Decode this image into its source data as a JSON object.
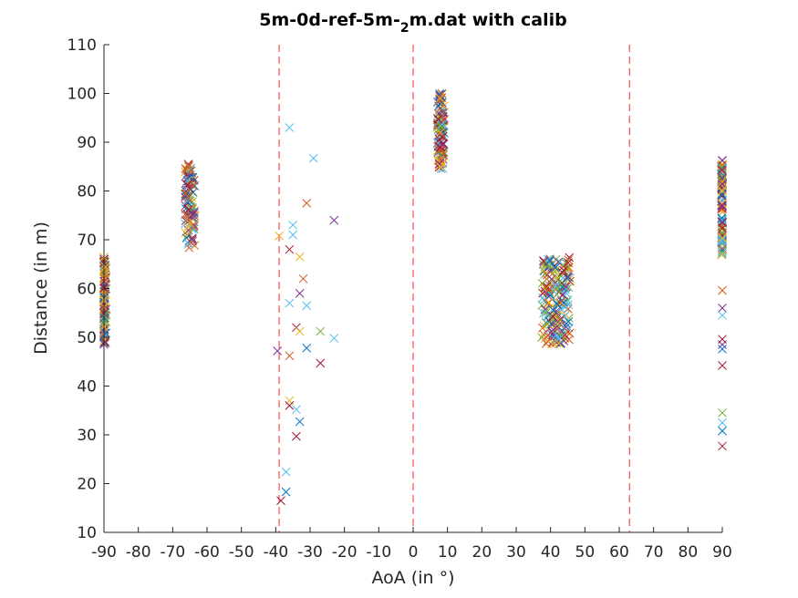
{
  "chart_data": {
    "type": "scatter",
    "title": "5m-0d-ref-5m-",
    "title_sub": "2",
    "title_rest": "m.dat with calib",
    "xlabel": "AoA (in °)",
    "ylabel": "Distance (in m)",
    "xlim": [
      -90,
      90
    ],
    "ylim": [
      10,
      110
    ],
    "xticks": [
      "-90",
      "-80",
      "-70",
      "-60",
      "-50",
      "-40",
      "-30",
      "-20",
      "-10",
      "0",
      "10",
      "20",
      "30",
      "40",
      "50",
      "60",
      "70",
      "80",
      "90"
    ],
    "yticks": [
      "10",
      "20",
      "30",
      "40",
      "50",
      "60",
      "70",
      "80",
      "90",
      "100",
      "110"
    ],
    "grid": false,
    "marker": "x",
    "reference_lines": [
      -39,
      0,
      63
    ],
    "reference_line_color": "#ff5a5a",
    "palette": [
      "#0072bd",
      "#d95319",
      "#edb120",
      "#7e2f8e",
      "#77ac30",
      "#4dbeee",
      "#a2142f"
    ],
    "clusters": [
      {
        "x_center": -90,
        "x_spread": 0.6,
        "y_min": 48.5,
        "y_max": 66.5,
        "count": 110
      },
      {
        "x_center": -65,
        "x_spread": 1.4,
        "y_min": 68,
        "y_max": 85.5,
        "count": 110
      },
      {
        "x_center": 8,
        "x_spread": 1.0,
        "y_min": 84.5,
        "y_max": 100,
        "count": 110
      },
      {
        "x_center": 41.5,
        "x_spread": 4.2,
        "y_min": 48.5,
        "y_max": 66.5,
        "count": 200
      },
      {
        "x_center": 90,
        "x_spread": 0.3,
        "y_min": 66.5,
        "y_max": 86.5,
        "count": 110
      }
    ],
    "points": [
      {
        "x": -36,
        "y": 93,
        "c": 5
      },
      {
        "x": -29,
        "y": 86.7,
        "c": 5
      },
      {
        "x": -31,
        "y": 77.5,
        "c": 1
      },
      {
        "x": -23,
        "y": 74,
        "c": 3
      },
      {
        "x": -35,
        "y": 73,
        "c": 5
      },
      {
        "x": -35,
        "y": 71,
        "c": 5
      },
      {
        "x": -39,
        "y": 70.8,
        "c": 2
      },
      {
        "x": -36,
        "y": 68,
        "c": 6
      },
      {
        "x": -33,
        "y": 66.5,
        "c": 2
      },
      {
        "x": -32,
        "y": 62,
        "c": 1
      },
      {
        "x": -33,
        "y": 59,
        "c": 3
      },
      {
        "x": -36,
        "y": 57,
        "c": 5
      },
      {
        "x": -31,
        "y": 56.5,
        "c": 5
      },
      {
        "x": -34,
        "y": 52,
        "c": 6
      },
      {
        "x": -33,
        "y": 51.2,
        "c": 2
      },
      {
        "x": -27,
        "y": 51.2,
        "c": 4
      },
      {
        "x": -23,
        "y": 49.8,
        "c": 5
      },
      {
        "x": -31,
        "y": 47.8,
        "c": 0
      },
      {
        "x": -39.5,
        "y": 47.2,
        "c": 3
      },
      {
        "x": -36,
        "y": 46.2,
        "c": 1
      },
      {
        "x": -27,
        "y": 44.7,
        "c": 6
      },
      {
        "x": -36,
        "y": 37,
        "c": 2
      },
      {
        "x": -36,
        "y": 36,
        "c": 6
      },
      {
        "x": -34,
        "y": 35.2,
        "c": 5
      },
      {
        "x": -33,
        "y": 32.7,
        "c": 0
      },
      {
        "x": -34,
        "y": 29.7,
        "c": 6
      },
      {
        "x": -37,
        "y": 22.4,
        "c": 5
      },
      {
        "x": -37,
        "y": 18.3,
        "c": 0
      },
      {
        "x": -38.5,
        "y": 16.5,
        "c": 6
      },
      {
        "x": 90,
        "y": 59.6,
        "c": 1
      },
      {
        "x": 90,
        "y": 56,
        "c": 3
      },
      {
        "x": 90,
        "y": 54.5,
        "c": 5
      },
      {
        "x": 90,
        "y": 49.6,
        "c": 6
      },
      {
        "x": 90,
        "y": 48.5,
        "c": 3
      },
      {
        "x": 90,
        "y": 47.6,
        "c": 0
      },
      {
        "x": 90,
        "y": 44.2,
        "c": 6
      },
      {
        "x": 90,
        "y": 34.5,
        "c": 4
      },
      {
        "x": 90,
        "y": 32.5,
        "c": 5
      },
      {
        "x": 90,
        "y": 30.8,
        "c": 0
      },
      {
        "x": 90,
        "y": 27.7,
        "c": 6
      }
    ]
  }
}
